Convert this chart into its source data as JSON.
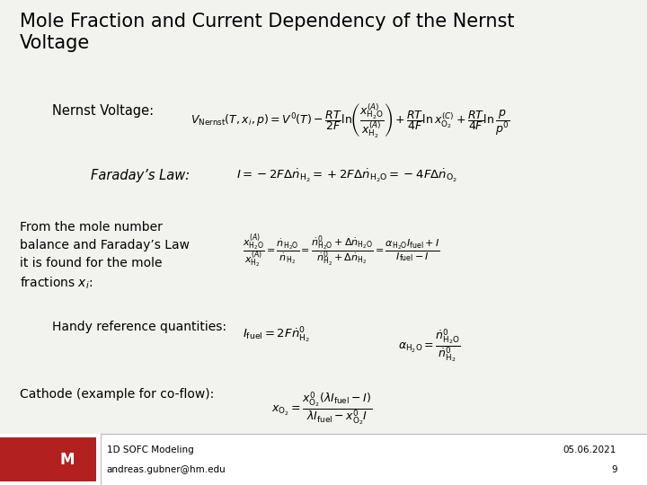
{
  "title": "Mole Fraction and Current Dependency of the Nernst\nVoltage",
  "background_color": "#f2f2ee",
  "footer_line": "1D SOFC Modeling",
  "footer_email": "andreas.gubner@hm.edu",
  "footer_date": "05.06.2021",
  "footer_page": "9",
  "nernst_label": "Nernst Voltage:",
  "nernst_eq": "$V_{\\mathrm{Nernst}}(T,x_i,p) = V^0(T) - \\dfrac{RT}{2F}\\ln\\!\\left(\\dfrac{x_{\\mathrm{H_2O}}^{(A)}}{x_{\\mathrm{H_2}}^{(A)}}\\right) + \\dfrac{RT}{4F}\\ln x_{\\mathrm{O_2}}^{(C)} + \\dfrac{RT}{4F}\\ln\\dfrac{p}{p^0}$",
  "faraday_label": "Faraday’s Law:",
  "faraday_eq": "$I = -2F\\Delta\\dot{n}_{\\mathrm{H_2}} = +2F\\Delta\\dot{n}_{\\mathrm{H_2O}} = -4F\\Delta\\dot{n}_{\\mathrm{O_2}}$",
  "mole_label": "From the mole number\nbalance and Faraday’s Law\nit is found for the mole\nfractions $x_i$:",
  "mole_eq": "$\\dfrac{x_{\\mathrm{H_2O}}^{(A)}}{x_{\\mathrm{H_2}}^{(A)}} = \\dfrac{\\dot{n}_{\\mathrm{H_2O}}}{\\dot{n}_{\\mathrm{H_2}}} = \\dfrac{\\dot{n}^0_{\\mathrm{H_2O}} + \\Delta\\dot{n}_{\\mathrm{H_2O}}}{\\dot{n}^0_{\\mathrm{H_2}} + \\Delta\\dot{n}_{\\mathrm{H_2}}} = \\dfrac{\\alpha_{\\mathrm{H_2O}} I_{\\mathrm{fuel}} + I}{I_{\\mathrm{fuel}} - I}$",
  "handy_label": "Handy reference quantities:",
  "handy_eq1": "$I_{\\mathrm{fuel}} = 2F\\dot{n}^0_{\\mathrm{H_2}}$",
  "handy_eq2": "$\\alpha_{\\mathrm{H_2O}} = \\dfrac{\\dot{n}^0_{\\mathrm{H_2O}}}{\\dot{n}^0_{\\mathrm{H_2}}}$",
  "cathode_label": "Cathode (example for co-flow):",
  "cathode_eq": "$x_{\\mathrm{O_2}} = \\dfrac{x^0_{\\mathrm{O_2}}\\left(\\lambda I_{\\mathrm{fuel}} - I\\right)}{\\lambda I_{\\mathrm{fuel}} - x^0_{\\mathrm{O_2}} I}$"
}
